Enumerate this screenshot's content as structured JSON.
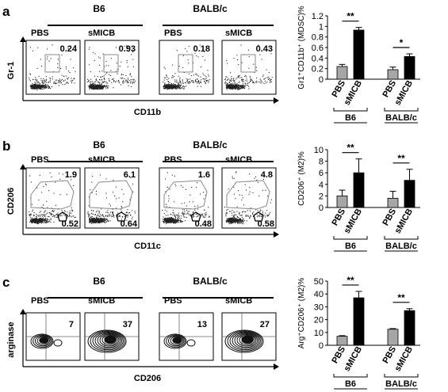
{
  "colors": {
    "pbs_bar": "#a6a6a6",
    "smicb_bar": "#000000",
    "axis": "#000000",
    "gate": "#8a8a8a"
  },
  "panels": [
    {
      "letter": "a",
      "strains": [
        "B6",
        "BALB/c"
      ],
      "treatments": [
        "PBS",
        "sMICB"
      ],
      "plot_values": [
        "0.24",
        "0.93",
        "0.18",
        "0.43"
      ],
      "y_axis_label": "Gr-1",
      "x_axis_label": "CD11b",
      "plot_type": "dot"
    },
    {
      "letter": "b",
      "strains": [
        "B6",
        "BALB/c"
      ],
      "treatments": [
        "PBS",
        "sMICB"
      ],
      "plot_values": [
        "1.9",
        "6.1",
        "1.6",
        "4.8"
      ],
      "plot_values_low": [
        "0.52",
        "0.64",
        "0.48",
        "0.58"
      ],
      "y_axis_label": "CD206",
      "x_axis_label": "CD11c",
      "plot_type": "dot"
    },
    {
      "letter": "c",
      "strains": [
        "B6",
        "BALB/c"
      ],
      "treatments": [
        "PBS",
        "sMICB"
      ],
      "plot_values": [
        "7",
        "37",
        "13",
        "27"
      ],
      "y_axis_label": "arginase",
      "x_axis_label": "CD206",
      "plot_type": "contour"
    }
  ],
  "chart_data": [
    {
      "type": "bar",
      "ylabel": "Gr1⁺CD11b⁺ (MDSC)%",
      "ylim": [
        0,
        1.2
      ],
      "yticks": [
        "0",
        "0.2",
        "0.4",
        "0.6",
        "0.8",
        "1",
        "1.2"
      ],
      "categories": [
        "PBS",
        "sMICB",
        "PBS",
        "sMICB"
      ],
      "groups": [
        "B6",
        "BALB/c"
      ],
      "values": [
        0.24,
        0.93,
        0.18,
        0.43
      ],
      "errors": [
        0.04,
        0.05,
        0.05,
        0.05
      ],
      "significance": [
        "**",
        "*"
      ]
    },
    {
      "type": "bar",
      "ylabel": "CD206⁺ (M2)%",
      "ylim": [
        0,
        10
      ],
      "yticks": [
        "0",
        "2",
        "4",
        "6",
        "8",
        "10"
      ],
      "categories": [
        "PBS",
        "sMICB",
        "PBS",
        "sMICB"
      ],
      "groups": [
        "B6",
        "BALB/c"
      ],
      "values": [
        2.0,
        6.0,
        1.6,
        4.7
      ],
      "errors": [
        1.0,
        2.4,
        1.2,
        1.9
      ],
      "significance": [
        "**",
        "**"
      ]
    },
    {
      "type": "bar",
      "ylabel": "Arg⁺CD206⁺ (M2)%",
      "ylim": [
        0,
        50
      ],
      "yticks": [
        "0",
        "10",
        "20",
        "30",
        "40",
        "50"
      ],
      "categories": [
        "PBS",
        "sMICB",
        "PBS",
        "sMICB"
      ],
      "groups": [
        "B6",
        "BALB/c"
      ],
      "values": [
        7,
        37,
        12.5,
        27
      ],
      "errors": [
        0.5,
        5,
        0.5,
        1.5
      ],
      "significance": [
        "**",
        "**"
      ]
    }
  ]
}
